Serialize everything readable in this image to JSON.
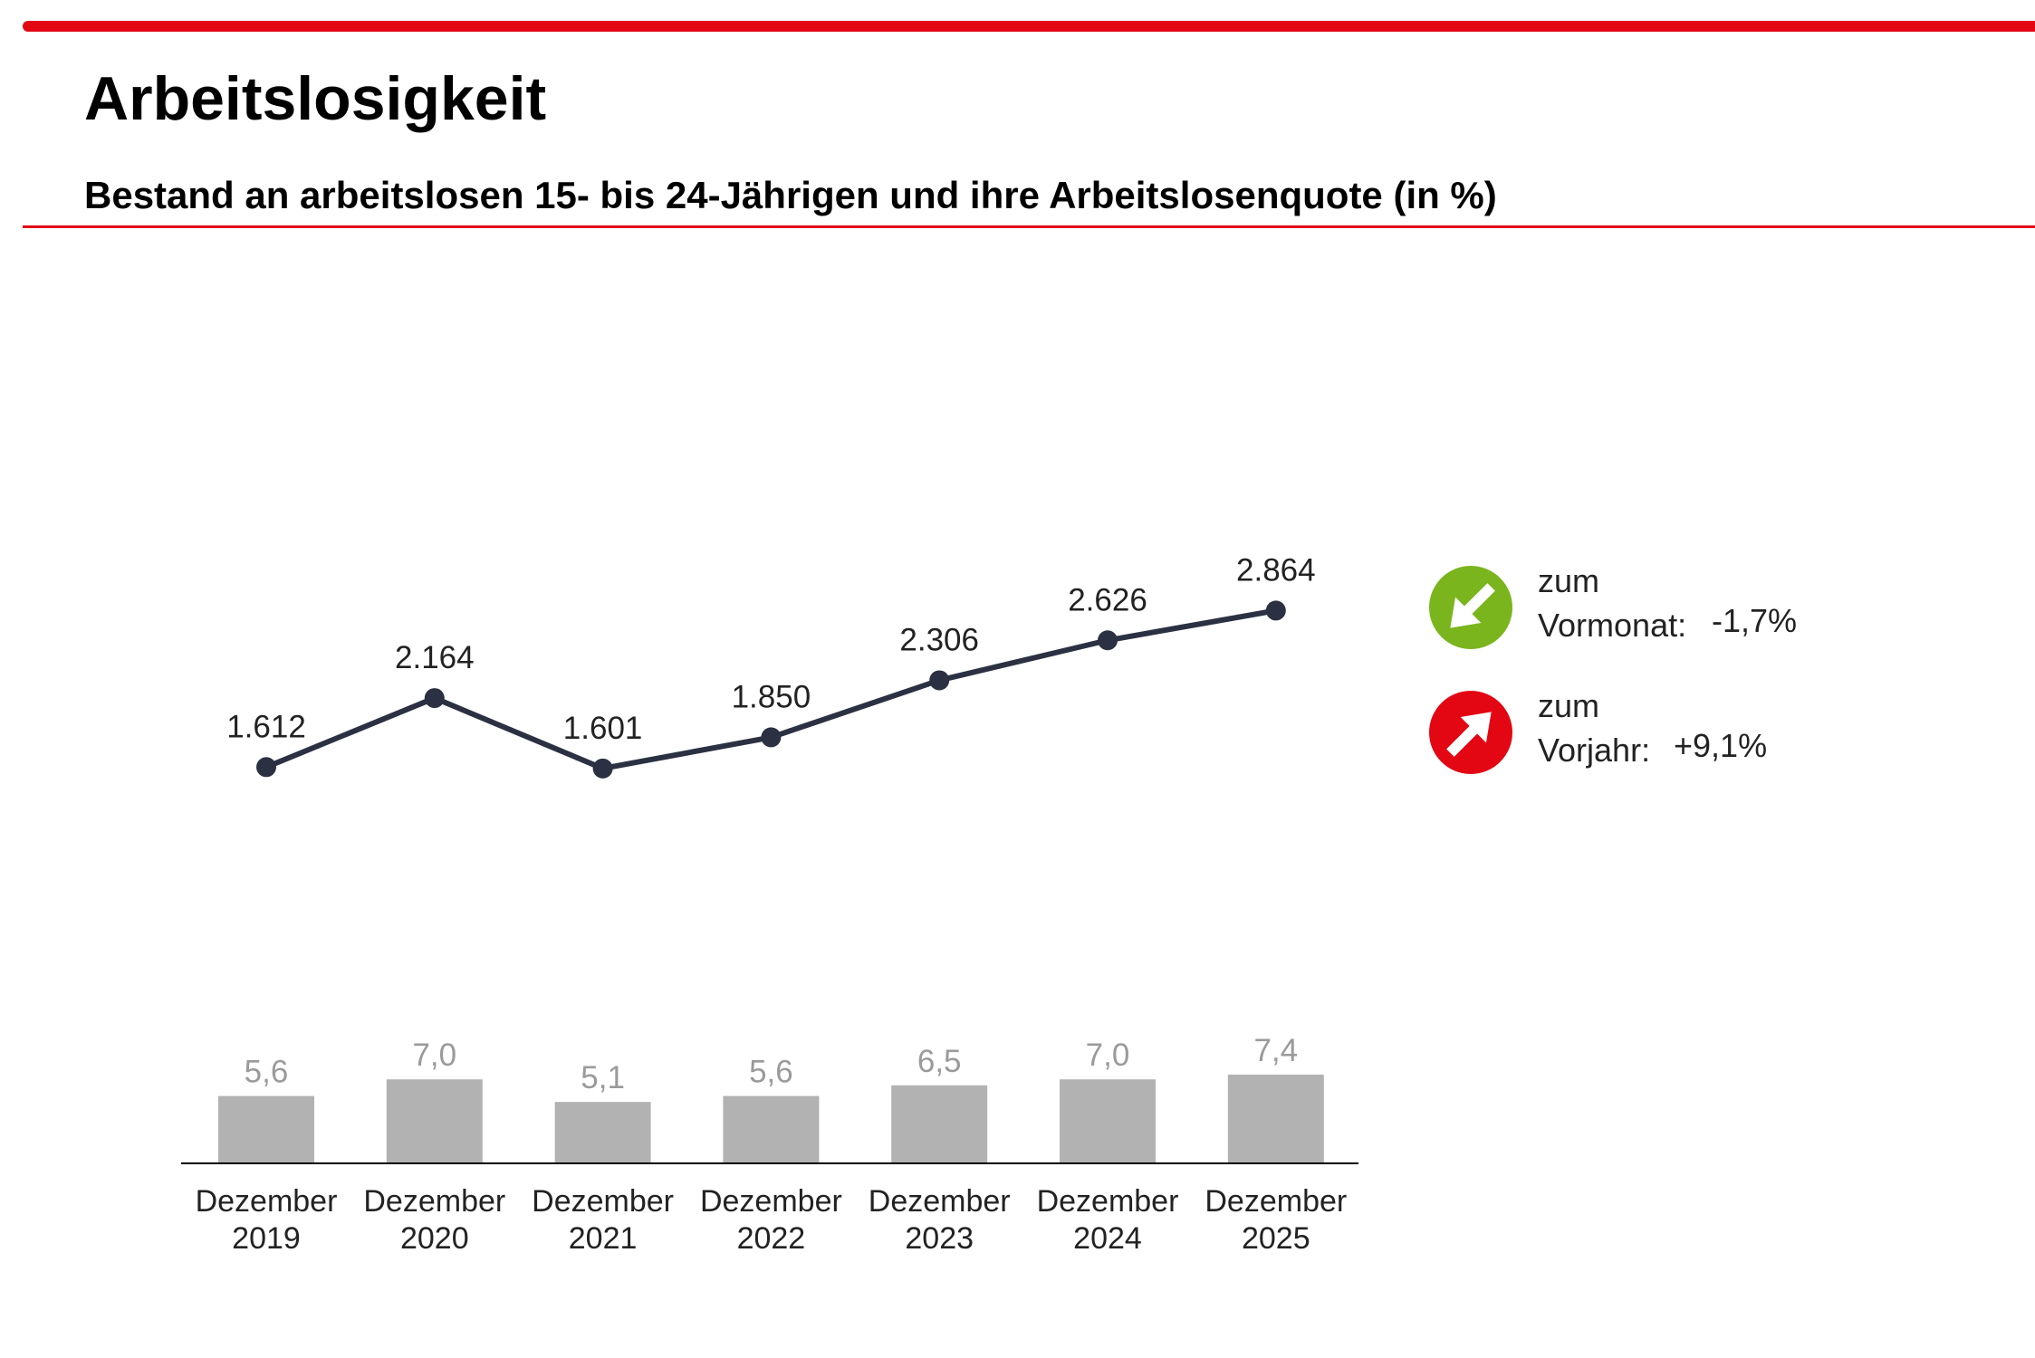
{
  "header": {
    "title": "Arbeitslosigkeit",
    "subtitle": "Bestand an arbeitslosen 15- bis 24-Jährigen und ihre Arbeitslosenquote (in %)"
  },
  "colors": {
    "accent_red": "#e30613",
    "line": "#2b3142",
    "bar": "#b2b2b2",
    "bar_label": "#9a9a9a",
    "down_green": "#7ab51d",
    "up_red": "#e30613"
  },
  "chart_data": [
    {
      "type": "line",
      "title": "Bestand an arbeitslosen 15- bis 24-Jährigen",
      "categories": [
        "Dezember 2019",
        "Dezember 2020",
        "Dezember 2021",
        "Dezember 2022",
        "Dezember 2023",
        "Dezember 2024",
        "Dezember 2025"
      ],
      "values": [
        1612,
        2164,
        1601,
        1850,
        2306,
        2626,
        2864
      ],
      "labels": [
        "1.612",
        "2.164",
        "1.601",
        "1.850",
        "2.306",
        "2.626",
        "2.864"
      ],
      "ylim": [
        1100,
        3200
      ],
      "grid": false
    },
    {
      "type": "bar",
      "title": "Arbeitslosenquote (in %)",
      "categories": [
        "Dezember 2019",
        "Dezember 2020",
        "Dezember 2021",
        "Dezember 2022",
        "Dezember 2023",
        "Dezember 2024",
        "Dezember 2025"
      ],
      "values": [
        5.6,
        7.0,
        5.1,
        5.6,
        6.5,
        7.0,
        7.4
      ],
      "labels": [
        "5,6",
        "7,0",
        "5,1",
        "5,6",
        "6,5",
        "7,0",
        "7,4"
      ],
      "ylim": [
        0,
        7.4
      ],
      "grid": false
    }
  ],
  "x_axis": {
    "ticks": [
      {
        "line1": "Dezember",
        "line2": "2019"
      },
      {
        "line1": "Dezember",
        "line2": "2020"
      },
      {
        "line1": "Dezember",
        "line2": "2021"
      },
      {
        "line1": "Dezember",
        "line2": "2022"
      },
      {
        "line1": "Dezember",
        "line2": "2023"
      },
      {
        "line1": "Dezember",
        "line2": "2024"
      },
      {
        "line1": "Dezember",
        "line2": "2025"
      }
    ]
  },
  "indicators": [
    {
      "icon": "arrow-down-right-icon",
      "line1": "zum",
      "line2": "Vormonat:",
      "value": "-1,7%",
      "color": "#7ab51d"
    },
    {
      "icon": "arrow-up-right-icon",
      "line1": "zum",
      "line2": "Vorjahr:",
      "value": "+9,1%",
      "color": "#e30613"
    }
  ]
}
